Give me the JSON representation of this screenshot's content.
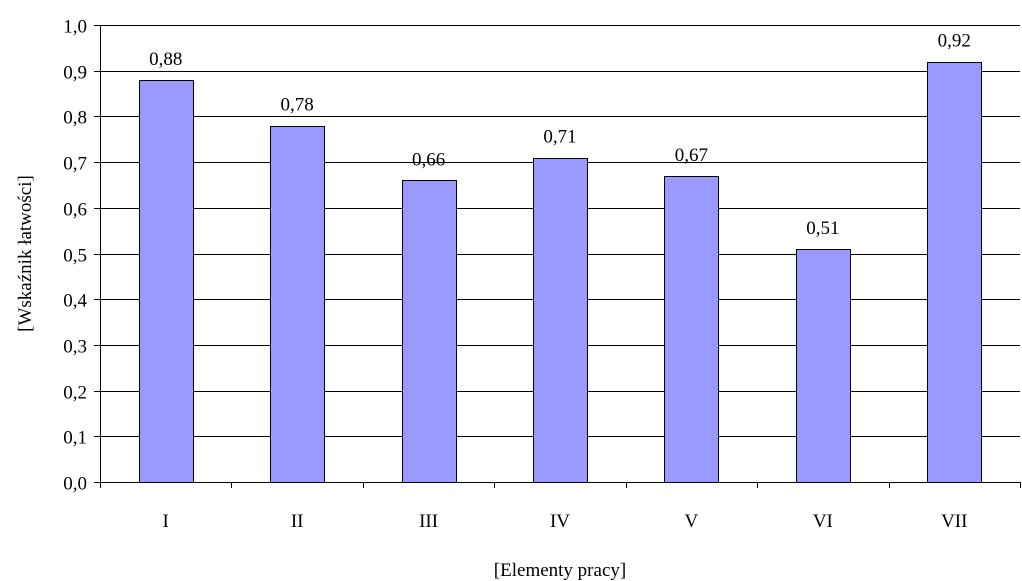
{
  "chart_data": {
    "type": "bar",
    "categories": [
      "I",
      "II",
      "III",
      "IV",
      "V",
      "VI",
      "VII"
    ],
    "values": [
      0.88,
      0.78,
      0.66,
      0.71,
      0.67,
      0.51,
      0.92
    ],
    "data_labels": [
      "0,88",
      "0,78",
      "0,66",
      "0,71",
      "0,67",
      "0,51",
      "0,92"
    ],
    "xlabel": "[Elementy pracy]",
    "ylabel": "[Wskaźnik łatwości]",
    "ylim": [
      0,
      1.0
    ],
    "yticks": [
      0.0,
      0.1,
      0.2,
      0.3,
      0.4,
      0.5,
      0.6,
      0.7,
      0.8,
      0.9,
      1.0
    ],
    "ytick_labels": [
      "0,0",
      "0,1",
      "0,2",
      "0,3",
      "0,4",
      "0,5",
      "0,6",
      "0,7",
      "0,8",
      "0,9",
      "1,0"
    ],
    "grid": true,
    "legend": "none",
    "colors": {
      "bar_fill": "#9999ff",
      "bar_stroke": "#000000",
      "grid": "#000000",
      "axis": "#000000"
    }
  }
}
